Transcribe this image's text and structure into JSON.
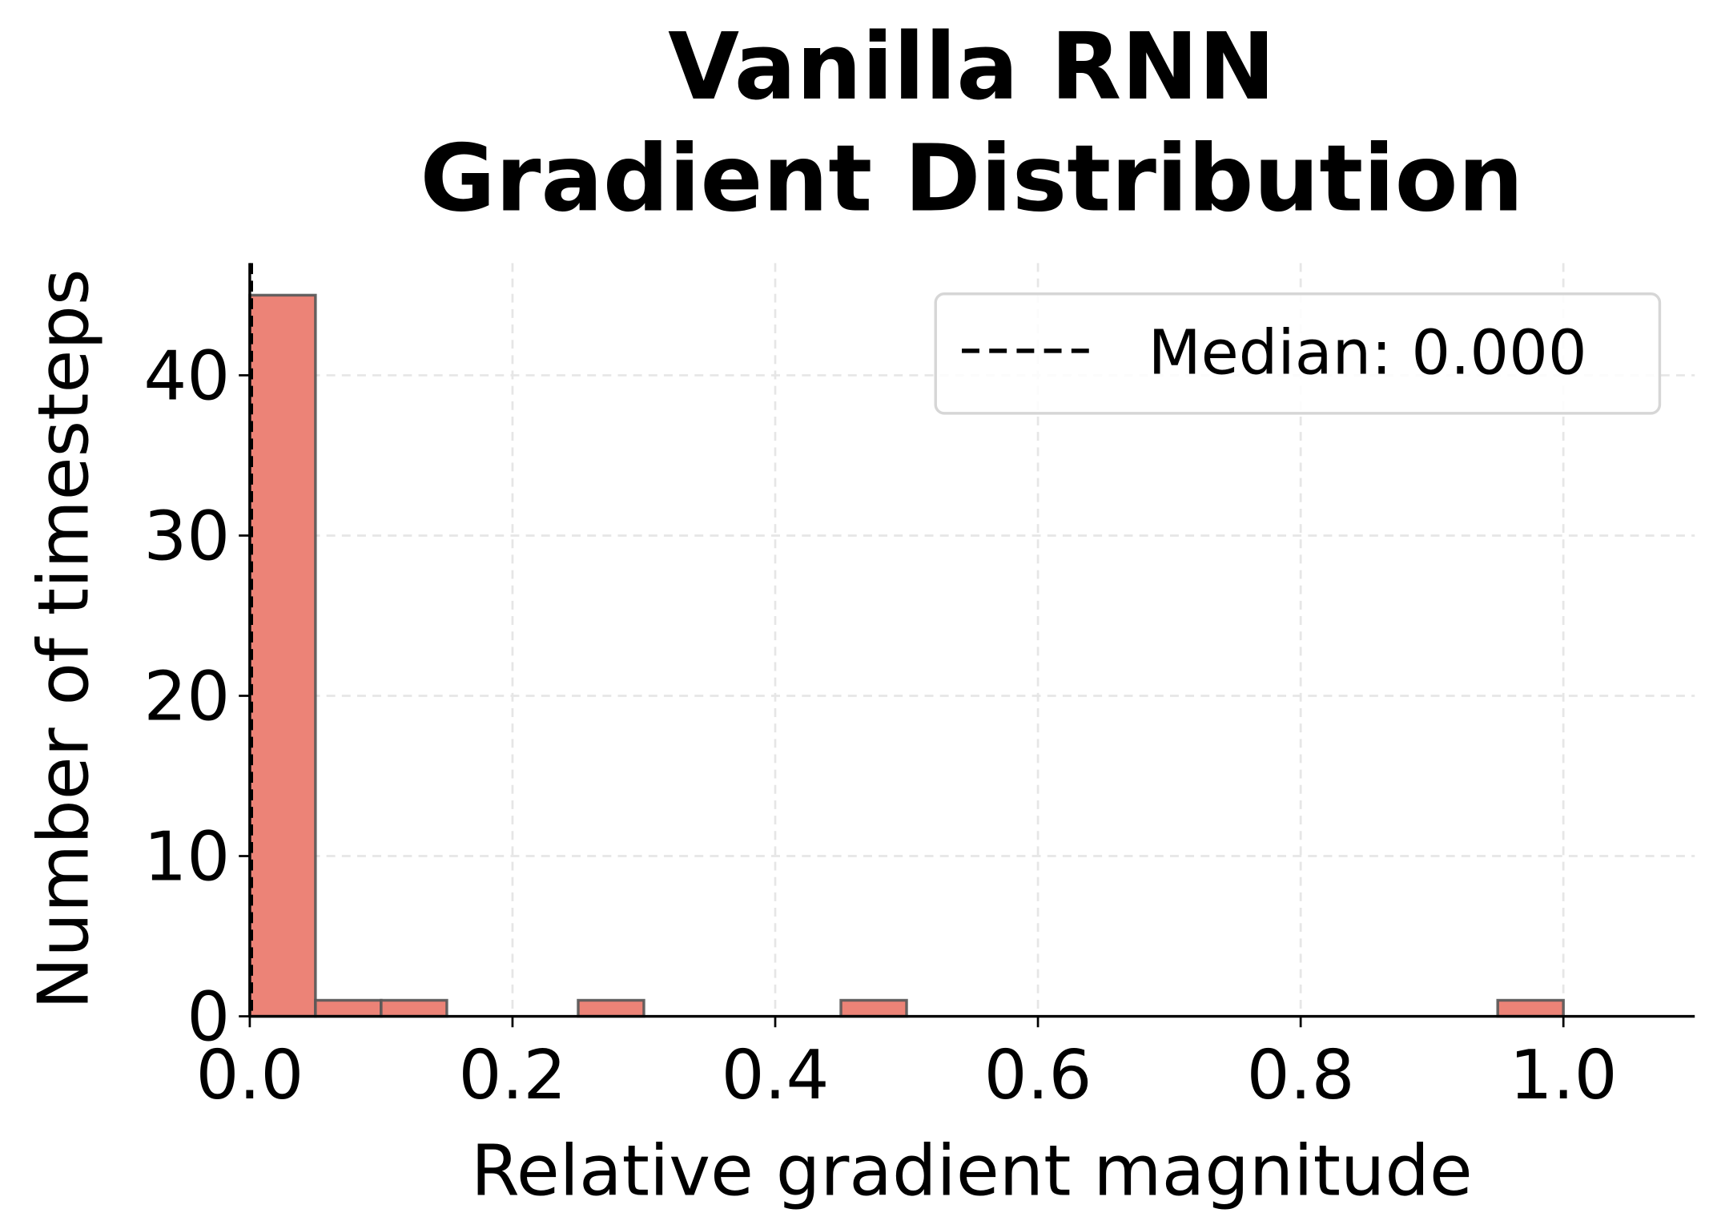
{
  "chart_data": {
    "type": "bar",
    "title": "Vanilla RNN\nGradient Distribution",
    "title_lines": [
      "Vanilla RNN",
      "Gradient Distribution"
    ],
    "xlabel": "Relative gradient magnitude",
    "ylabel": "Number of timesteps",
    "xlim": [
      0,
      1.1
    ],
    "ylim": [
      0,
      47
    ],
    "xticks": [
      "0.0",
      "0.2",
      "0.4",
      "0.6",
      "0.8",
      "1.0"
    ],
    "yticks": [
      "0",
      "10",
      "20",
      "30",
      "40"
    ],
    "grid": true,
    "bin_width": 0.05,
    "bins": [
      {
        "start": 0.0,
        "count": 45
      },
      {
        "start": 0.05,
        "count": 1
      },
      {
        "start": 0.1,
        "count": 1
      },
      {
        "start": 0.25,
        "count": 1
      },
      {
        "start": 0.45,
        "count": 1
      },
      {
        "start": 0.95,
        "count": 1
      }
    ],
    "median": 0.0,
    "legend": {
      "position": "top-right",
      "entries": [
        "Median: 0.000"
      ]
    },
    "colors": {
      "bar": "#EC8377",
      "bar_edge": "#555555",
      "median_line": "#000000",
      "grid": "#e6e6e6"
    }
  }
}
